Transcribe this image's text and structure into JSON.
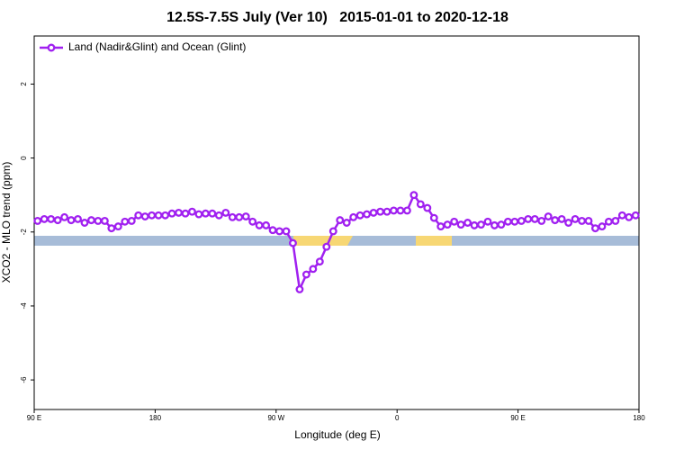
{
  "chart_data": {
    "type": "line",
    "title": "12.5S-7.5S July (Ver 10)   2015-01-01 to 2020-12-18",
    "xlabel": "Longitude (deg E)",
    "ylabel": "XCO2 - MLO trend (ppm)",
    "x": [
      92.5,
      97.5,
      102.5,
      107.5,
      112.5,
      117.5,
      122.5,
      127.5,
      132.5,
      137.5,
      142.5,
      147.5,
      152.5,
      157.5,
      162.5,
      167.5,
      172.5,
      177.5,
      182.5,
      187.5,
      192.5,
      197.5,
      202.5,
      207.5,
      212.5,
      217.5,
      222.5,
      227.5,
      232.5,
      237.5,
      242.5,
      247.5,
      252.5,
      257.5,
      262.5,
      267.5,
      272.5,
      277.5,
      282.5,
      287.5,
      292.5,
      297.5,
      302.5,
      307.5,
      312.5,
      317.5,
      322.5,
      327.5,
      332.5,
      337.5,
      342.5,
      347.5,
      352.5,
      357.5,
      362.5,
      367.5,
      372.5,
      377.5,
      382.5,
      387.5,
      392.5,
      397.5,
      402.5,
      407.5,
      412.5,
      417.5,
      422.5,
      427.5,
      432.5,
      437.5,
      442.5,
      447.5,
      452.5,
      457.5,
      462.5,
      467.5,
      472.5,
      477.5,
      482.5,
      487.5,
      492.5,
      497.5,
      502.5,
      507.5,
      512.5,
      517.5,
      522.5,
      527.5,
      532.5,
      537.5
    ],
    "series": [
      {
        "name": "Land (Nadir&Glint) and Ocean (Glint)",
        "color": "#a020f0",
        "values": [
          -1.7,
          -1.65,
          -1.65,
          -1.68,
          -1.6,
          -1.68,
          -1.65,
          -1.75,
          -1.68,
          -1.7,
          -1.7,
          -1.9,
          -1.85,
          -1.72,
          -1.7,
          -1.55,
          -1.58,
          -1.55,
          -1.55,
          -1.55,
          -1.5,
          -1.48,
          -1.5,
          -1.45,
          -1.52,
          -1.5,
          -1.5,
          -1.55,
          -1.48,
          -1.6,
          -1.6,
          -1.58,
          -1.72,
          -1.82,
          -1.82,
          -1.95,
          -1.98,
          -1.98,
          -2.3,
          -3.55,
          -3.15,
          -3.0,
          -2.8,
          -2.4,
          -1.98,
          -1.68,
          -1.75,
          -1.6,
          -1.55,
          -1.52,
          -1.48,
          -1.45,
          -1.45,
          -1.42,
          -1.42,
          -1.42,
          -1.0,
          -1.25,
          -1.35,
          -1.62,
          -1.85,
          -1.8,
          -1.72,
          -1.8,
          -1.75,
          -1.82,
          -1.8,
          -1.72,
          -1.82,
          -1.8,
          -1.72,
          -1.72,
          -1.7,
          -1.65,
          -1.65,
          -1.7,
          -1.58,
          -1.68,
          -1.65,
          -1.75,
          -1.65,
          -1.7,
          -1.7,
          -1.9,
          -1.85,
          -1.72,
          -1.7,
          -1.55,
          -1.6,
          -1.55
        ]
      }
    ],
    "xlim": [
      90,
      540
    ],
    "xticks": [
      {
        "value": 90,
        "label": "90 E"
      },
      180,
      {
        "value": 270,
        "label": "90 W"
      },
      {
        "value": 360,
        "label": "0"
      },
      {
        "value": 450,
        "label": "90 E"
      },
      {
        "value": 540,
        "label": "180"
      }
    ],
    "ylim": [
      -6.8,
      3.3
    ],
    "yticks": [
      -6,
      -4,
      -2,
      0,
      2
    ],
    "legend": "top-left"
  }
}
